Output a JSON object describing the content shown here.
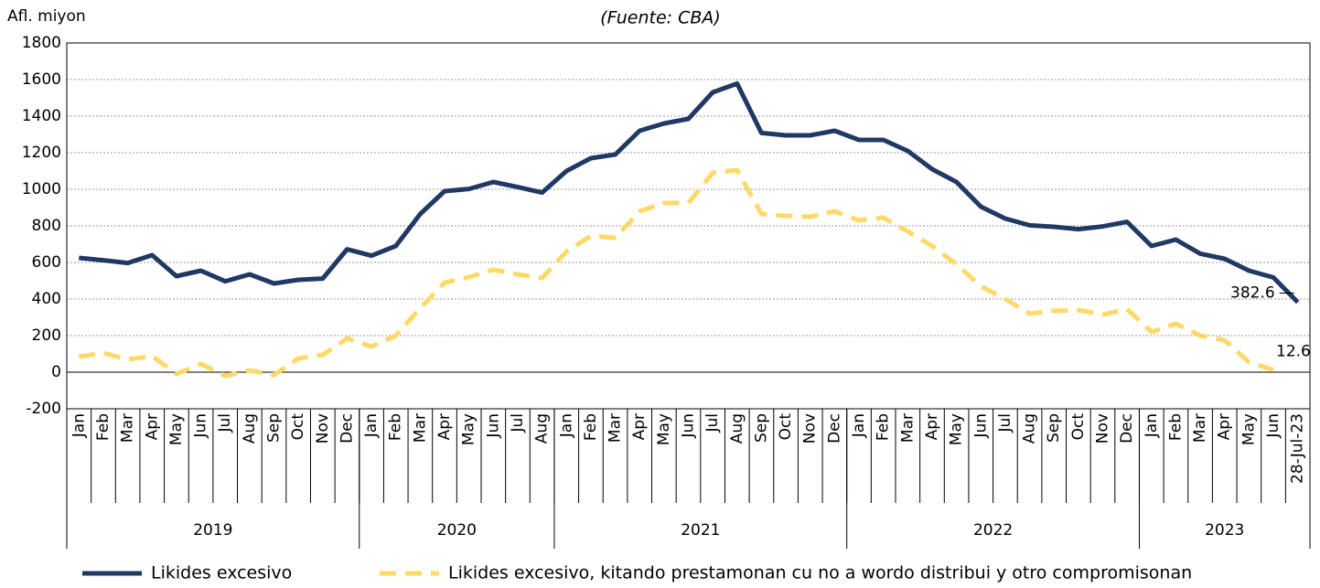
{
  "chart_data": {
    "type": "line",
    "title": "(Fuente: CBA)",
    "y_axis_label": "Afl. miyon",
    "categories": [
      "Jan",
      "Feb",
      "Mar",
      "Apr",
      "May",
      "Jun",
      "Jul",
      "Aug",
      "Sep",
      "Oct",
      "Nov",
      "Dec",
      "Jan",
      "Feb",
      "Mar",
      "Apr",
      "May",
      "Jun",
      "Jul",
      "Aug",
      "Jan",
      "Feb",
      "Mar",
      "Apr",
      "May",
      "Jun",
      "Jul",
      "Aug",
      "Sep",
      "Oct",
      "Nov",
      "Dec",
      "Jan",
      "Feb",
      "Mar",
      "Apr",
      "May",
      "Jun",
      "Jul",
      "Aug",
      "Sep",
      "Oct",
      "Nov",
      "Dec",
      "Jan",
      "Feb",
      "Mar",
      "Apr",
      "May",
      "Jun",
      "28-Jul-23"
    ],
    "category_groups": [
      {
        "name": "2019",
        "count": 12
      },
      {
        "name": "2020",
        "count": 8
      },
      {
        "name": "2021",
        "count": 12
      },
      {
        "name": "2022",
        "count": 12
      },
      {
        "name": "2023",
        "count": 7
      }
    ],
    "series": [
      {
        "name": "Likides excesivo",
        "color": "#1f3864",
        "dash": false,
        "values": [
          625,
          612,
          597,
          640,
          525,
          555,
          497,
          535,
          485,
          505,
          512,
          672,
          637,
          690,
          865,
          990,
          1002,
          1040,
          1012,
          982,
          1100,
          1170,
          1190,
          1320,
          1360,
          1385,
          1530,
          1578,
          1308,
          1295,
          1295,
          1320,
          1270,
          1270,
          1210,
          1110,
          1040,
          905,
          840,
          803,
          795,
          782,
          797,
          822,
          690,
          725,
          648,
          620,
          555,
          518,
          382.6
        ]
      },
      {
        "name": "Likides excesivo, kitando prestamonan cu no a wordo distribui y otro compromisonan",
        "color": "#ffd966",
        "dash": true,
        "values": [
          85,
          105,
          70,
          88,
          -10,
          45,
          -20,
          10,
          -15,
          75,
          95,
          185,
          140,
          200,
          350,
          490,
          520,
          560,
          535,
          515,
          660,
          745,
          735,
          880,
          925,
          925,
          1090,
          1105,
          865,
          855,
          850,
          880,
          830,
          845,
          770,
          690,
          590,
          470,
          400,
          320,
          335,
          340,
          315,
          345,
          220,
          265,
          200,
          175,
          55,
          12.6,
          null
        ]
      }
    ],
    "ylim": [
      -200,
      1800
    ],
    "yticks": [
      -200,
      0,
      200,
      400,
      600,
      800,
      1000,
      1200,
      1400,
      1600,
      1800
    ],
    "grid": true,
    "legend": "bottom"
  }
}
